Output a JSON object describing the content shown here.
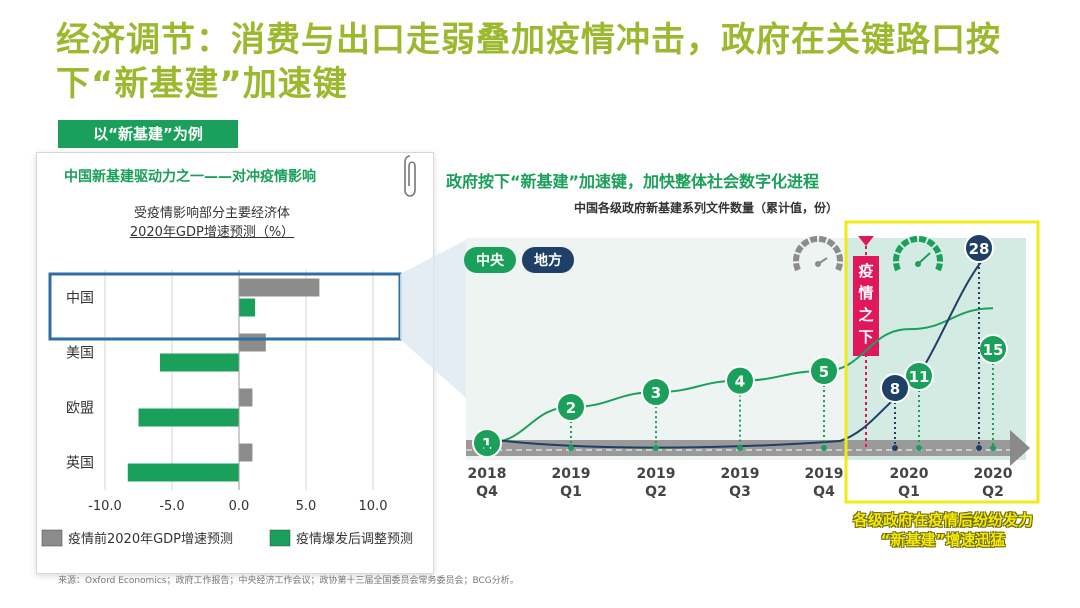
{
  "page": {
    "title": "经济调节：消费与出口走弱叠加疫情冲击，政府在关键路口按下“新基建”加速键",
    "tag": "以“新基建”为例",
    "source": "来源：Oxford Economics；政府工作报告；中央经济工作会议；政协第十三届全国委员会常务委员会；BCG分析。",
    "colors": {
      "title": "#9cb82e",
      "green": "#1aa05a",
      "navy": "#1e3f66",
      "gray": "#8c8c8c",
      "red": "#e0185a",
      "yellow": "#f0ea1a"
    }
  },
  "left_panel": {
    "title": "中国新基建驱动力之一——对冲疫情影响",
    "subtitle_line1": "受疫情影响部分主要经济体",
    "subtitle_line2": "2020年GDP增速预测（%）"
  },
  "right_panel": {
    "title": "政府按下“新基建”加速键，加快整体社会数字化进程",
    "subtitle": "中国各级政府新基建系列文件数量（累计值，份）",
    "event_label": [
      "疫",
      "情",
      "之",
      "下"
    ],
    "note_line1": "各级政府在疫情后纷纷发力",
    "note_line2": "“新基建”增速迅猛"
  },
  "chart_data": [
    {
      "type": "bar",
      "orientation": "horizontal",
      "title": "受疫情影响部分主要经济体 2020年GDP增速预测（%）",
      "categories": [
        "中国",
        "美国",
        "欧盟",
        "英国"
      ],
      "series": [
        {
          "name": "疫情前2020年GDP增速预测",
          "color": "#8c8c8c",
          "values": [
            6.0,
            2.0,
            1.0,
            1.0
          ]
        },
        {
          "name": "疫情爆发后调整预测",
          "color": "#1aa05a",
          "values": [
            1.2,
            -5.9,
            -7.5,
            -8.3
          ]
        }
      ],
      "xlim": [
        -10.0,
        10.0
      ],
      "xticks": [
        "-10.0",
        "-5.0",
        "0.0",
        "5.0",
        "10.0"
      ],
      "highlight_category": "中国",
      "legend_position": "bottom"
    },
    {
      "type": "line",
      "title": "中国各级政府新基建系列文件数量（累计值，份）",
      "x": [
        {
          "year": "2018",
          "quarter": "Q4"
        },
        {
          "year": "2019",
          "quarter": "Q1"
        },
        {
          "year": "2019",
          "quarter": "Q2"
        },
        {
          "year": "2019",
          "quarter": "Q3"
        },
        {
          "year": "2019",
          "quarter": "Q4"
        },
        {
          "year": "2020",
          "quarter": "Q1"
        },
        {
          "year": "2020",
          "quarter": "Q2"
        }
      ],
      "series": [
        {
          "name": "中央",
          "color": "#1aa05a",
          "values": [
            1,
            2,
            3,
            4,
            5,
            11,
            15
          ]
        },
        {
          "name": "地方",
          "color": "#1e3f66",
          "values": [
            null,
            null,
            null,
            null,
            null,
            8,
            28
          ]
        }
      ],
      "legend_position": "top-left",
      "event_marker": {
        "between": [
          "2019 Q4",
          "2020 Q1"
        ],
        "label": "疫情之下"
      },
      "highlight_range": [
        "2020 Q1",
        "2020 Q2"
      ]
    }
  ]
}
